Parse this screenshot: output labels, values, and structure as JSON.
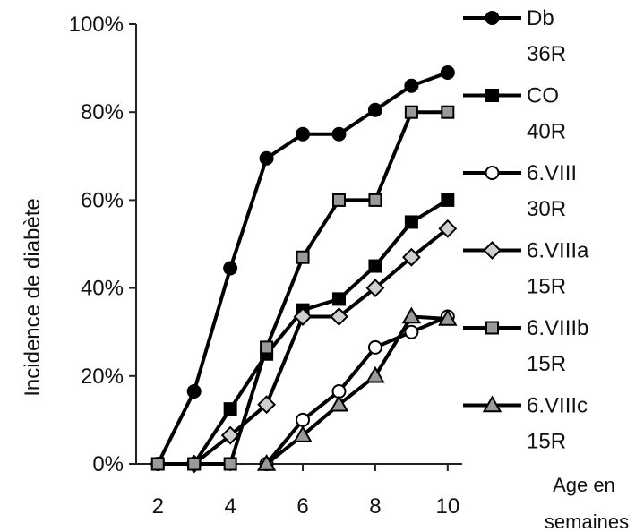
{
  "chart_data": {
    "type": "line",
    "ylabel": "Incidence de diabète",
    "xlabel": "Age en semaines",
    "xlabel_lines": [
      "Age en",
      "semaines"
    ],
    "x_ticks": [
      2,
      4,
      6,
      8,
      10
    ],
    "x_tick_labels": [
      "2",
      "4",
      "6",
      "8",
      "10"
    ],
    "y_ticks": [
      0,
      20,
      40,
      60,
      80,
      100
    ],
    "y_tick_labels": [
      "0%",
      "20%",
      "40%",
      "60%",
      "80%",
      "100%"
    ],
    "xlim": [
      1.4,
      10.4
    ],
    "ylim": [
      0,
      100
    ],
    "grid": false,
    "legend_position": "right",
    "series": [
      {
        "name": "Db 36R",
        "label_lines": [
          "Db",
          "36R"
        ],
        "marker": "circle",
        "color": "#000000",
        "marker_fill": "#000000",
        "x": [
          2,
          3,
          4,
          5,
          6,
          7,
          8,
          9,
          10
        ],
        "y": [
          0,
          16.5,
          44.5,
          69.5,
          75,
          75,
          80.5,
          86,
          89
        ]
      },
      {
        "name": "CO 40R",
        "label_lines": [
          "CO",
          "40R"
        ],
        "marker": "square",
        "color": "#000000",
        "marker_fill": "#000000",
        "x": [
          3,
          4,
          5,
          6,
          7,
          8,
          9,
          10
        ],
        "y": [
          0,
          12.5,
          25,
          35,
          37.5,
          45,
          55,
          60
        ]
      },
      {
        "name": "6.VIII 30R",
        "label_lines": [
          "6.VIII",
          "30R"
        ],
        "marker": "circle",
        "color": "#000000",
        "marker_fill": "#ffffff",
        "x": [
          5,
          6,
          7,
          8,
          9,
          10
        ],
        "y": [
          0,
          10,
          16.5,
          26.5,
          30,
          33.5
        ]
      },
      {
        "name": "6.VIIIa 15R",
        "label_lines": [
          "6.VIIIa",
          "15R"
        ],
        "marker": "diamond",
        "color": "#000000",
        "marker_fill": "#cfcfcf",
        "x": [
          3,
          4,
          5,
          6,
          7,
          8,
          9,
          10
        ],
        "y": [
          0,
          6.5,
          13.5,
          33.5,
          33.5,
          40,
          47,
          53.5
        ]
      },
      {
        "name": "6.VIIIb 15R",
        "label_lines": [
          "6.VIIIb",
          "15R"
        ],
        "marker": "square",
        "color": "#000000",
        "marker_fill": "#9a9a9a",
        "x": [
          2,
          3,
          4,
          5,
          6,
          7,
          8,
          9,
          10
        ],
        "y": [
          0,
          0,
          0,
          26.5,
          47,
          60,
          60,
          80,
          80
        ]
      },
      {
        "name": "6.VIIIc 15R",
        "label_lines": [
          "6.VIIIc",
          "15R"
        ],
        "marker": "triangle",
        "color": "#000000",
        "marker_fill": "#9a9a9a",
        "x": [
          5,
          6,
          7,
          8,
          9,
          10
        ],
        "y": [
          0,
          6.5,
          13.5,
          20,
          33.5,
          33
        ]
      }
    ]
  }
}
